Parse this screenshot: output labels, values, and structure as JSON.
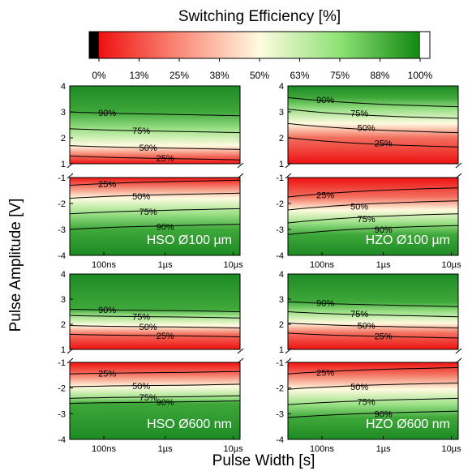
{
  "figure": {
    "colorbar_title": "Switching Efficiency [%]",
    "ylabel": "Pulse Amplitude [V]",
    "xlabel": "Pulse Width [s]"
  },
  "colors": {
    "low": "#ee1111",
    "mid": "#fffbe0",
    "high": "#118811",
    "min_cap": "#000000",
    "max_cap": "#ffffff"
  },
  "colorbar": {
    "ticks": [
      "0%",
      "13%",
      "25%",
      "38%",
      "50%",
      "63%",
      "75%",
      "88%",
      "100%"
    ]
  },
  "axes": {
    "x_ticks": [
      "100ns",
      "1µs",
      "10µs"
    ],
    "y_top_ticks": [
      "4",
      "3",
      "2",
      "1"
    ],
    "y_bottom_ticks": [
      "-1",
      "-2",
      "-3",
      "-4"
    ]
  },
  "chart_data": [
    {
      "type": "heatmap",
      "title": "HSO Ø100 µm",
      "xlabel": "Pulse Width [s]",
      "ylabel": "Pulse Amplitude [V]",
      "x_scale": "log",
      "xlim": [
        "30ns",
        "10µs"
      ],
      "ylim_positive": [
        1,
        4
      ],
      "ylim_negative": [
        -4,
        -1
      ],
      "contour_labels": {
        "positive": [
          "90%",
          "75%",
          "50%",
          "25%"
        ],
        "negative": [
          "25%",
          "50%",
          "75%",
          "90%"
        ]
      },
      "pos_levels": {
        "25": 1.3,
        "50": 1.7,
        "75": 2.35,
        "90": 3.0
      },
      "neg_levels": {
        "25": -1.3,
        "50": -1.8,
        "75": -2.4,
        "90": -3.0
      },
      "pos_slope": -0.15,
      "neg_slope": 0.2
    },
    {
      "type": "heatmap",
      "title": "HZO Ø100 µm",
      "xlabel": "Pulse Width [s]",
      "ylabel": "Pulse Amplitude [V]",
      "x_scale": "log",
      "xlim": [
        "30ns",
        "10µs"
      ],
      "ylim_positive": [
        1,
        4
      ],
      "ylim_negative": [
        -4,
        -1
      ],
      "contour_labels": {
        "positive": [
          "90%",
          "75%",
          "50%",
          "25%"
        ],
        "negative": [
          "25%",
          "50%",
          "75%",
          "90%"
        ]
      },
      "pos_levels": {
        "25": 2.0,
        "50": 2.55,
        "75": 3.1,
        "90": 3.55
      },
      "neg_levels": {
        "25": -1.75,
        "50": -2.25,
        "75": -2.75,
        "90": -3.2
      },
      "pos_slope": -0.35,
      "neg_slope": 0.35
    },
    {
      "type": "heatmap",
      "title": "HSO Ø600 nm",
      "xlabel": "Pulse Width [s]",
      "ylabel": "Pulse Amplitude [V]",
      "x_scale": "log",
      "xlim": [
        "30ns",
        "10µs"
      ],
      "ylim_positive": [
        1,
        4
      ],
      "ylim_negative": [
        -4,
        -1
      ],
      "contour_labels": {
        "positive": [
          "90%",
          "75%",
          "50%",
          "25%"
        ],
        "negative": [
          "25%",
          "50%",
          "75%",
          "90%"
        ]
      },
      "pos_levels": {
        "25": 1.6,
        "50": 1.95,
        "75": 2.35,
        "90": 2.6
      },
      "neg_levels": {
        "25": -1.45,
        "50": -1.95,
        "75": -2.4,
        "90": -2.6
      },
      "pos_slope": -0.1,
      "neg_slope": 0.1
    },
    {
      "type": "heatmap",
      "title": "HZO Ø600 nm",
      "xlabel": "Pulse Width [s]",
      "ylabel": "Pulse Amplitude [V]",
      "x_scale": "log",
      "xlim": [
        "30ns",
        "10µs"
      ],
      "ylim_positive": [
        1,
        4
      ],
      "ylim_negative": [
        -4,
        -1
      ],
      "contour_labels": {
        "positive": [
          "90%",
          "75%",
          "50%",
          "25%"
        ],
        "negative": [
          "25%",
          "50%",
          "75%",
          "90%"
        ]
      },
      "pos_levels": {
        "25": 1.65,
        "50": 2.05,
        "75": 2.5,
        "90": 2.9
      },
      "neg_levels": {
        "25": -1.45,
        "50": -2.05,
        "75": -2.65,
        "90": -3.15
      },
      "pos_slope": -0.2,
      "neg_slope": 0.25
    }
  ]
}
